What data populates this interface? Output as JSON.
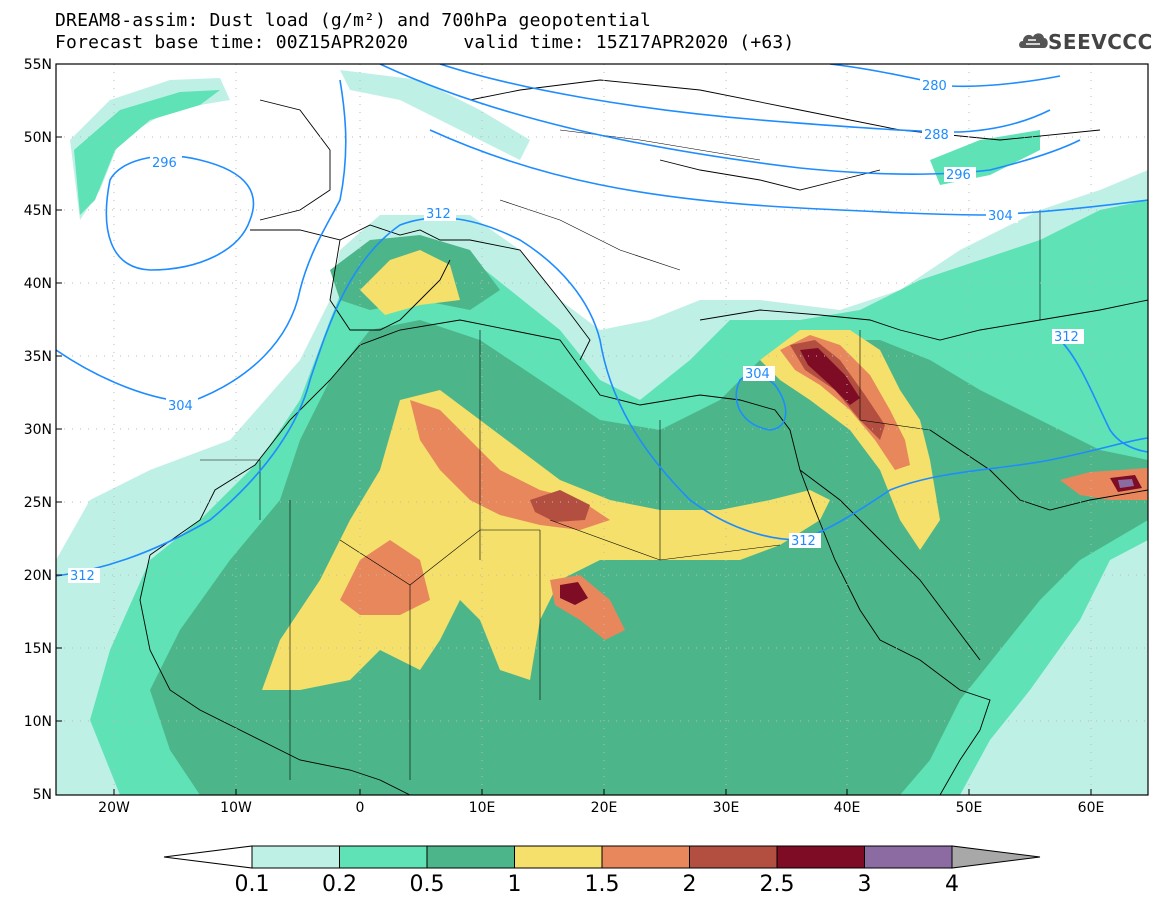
{
  "title": {
    "line1": "DREAM8-assim: Dust load (g/m²) and 700hPa geopotential",
    "line2": "Forecast base time: 00Z15APR2020     valid time: 15Z17APR2020 (+63)"
  },
  "logo": {
    "text": "SEEVCCC",
    "icon": "cloud-icon"
  },
  "axes": {
    "lat_labels": [
      "55N",
      "50N",
      "45N",
      "40N",
      "35N",
      "30N",
      "25N",
      "20N",
      "15N",
      "10N",
      "5N"
    ],
    "lon_labels": [
      "20W",
      "10W",
      "0",
      "10E",
      "20E",
      "30E",
      "40E",
      "50E",
      "60E"
    ]
  },
  "contours": {
    "labels": [
      "280",
      "288",
      "296",
      "296",
      "304",
      "304",
      "304",
      "312",
      "312",
      "312",
      "312"
    ]
  },
  "colorbar": {
    "ticks": [
      "0.1",
      "0.2",
      "0.5",
      "1",
      "1.5",
      "2",
      "2.5",
      "3",
      "4"
    ],
    "colors": [
      "#bff0e6",
      "#5ee2b6",
      "#4cb68a",
      "#f4e06a",
      "#e8875c",
      "#b24f40",
      "#7e0c25",
      "#8c6aa2"
    ],
    "under_color": "#ffffff",
    "over_color": "#a8a8a8"
  }
}
